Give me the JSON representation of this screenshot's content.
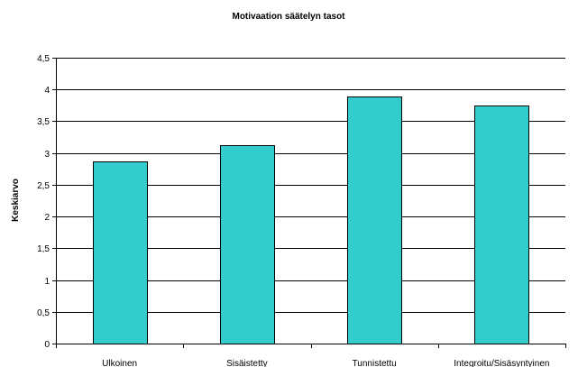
{
  "chart_data": {
    "type": "bar",
    "title": "Motivaation säätelyn tasot",
    "xlabel": "",
    "ylabel": "Keskiarvo",
    "categories": [
      "Ulkoinen",
      "Sisäistetty",
      "Tunnistettu",
      "Integroitu/Sisäsyntyinen"
    ],
    "values": [
      2.87,
      3.12,
      3.89,
      3.75
    ],
    "ylim": [
      0,
      4.5
    ],
    "yticks": [
      0,
      0.5,
      1,
      1.5,
      2,
      2.5,
      3,
      3.5,
      4,
      4.5
    ],
    "ytick_labels": [
      "0",
      "0,5",
      "1",
      "1,5",
      "2",
      "2,5",
      "3",
      "3,5",
      "4",
      "4,5"
    ],
    "grid": true,
    "legend": "none",
    "bar_color": "#33cccc",
    "bar_edge_color": "#000000",
    "grid_color": "#000000"
  }
}
